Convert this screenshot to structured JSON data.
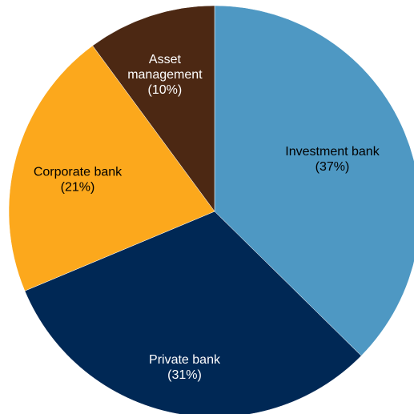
{
  "chart_data": {
    "type": "pie",
    "title": "",
    "start_angle_deg": 0,
    "direction": "clockwise",
    "slices": [
      {
        "name": "Investment bank",
        "value": 37,
        "label_lines": [
          "Investment bank",
          "(37%)"
        ],
        "color": "#4e98c3",
        "text_color": "#000000"
      },
      {
        "name": "Private bank",
        "value": 31,
        "label_lines": [
          "Private bank",
          "(31%)"
        ],
        "color": "#002855",
        "text_color": "#ffffff"
      },
      {
        "name": "Corporate bank",
        "value": 21,
        "label_lines": [
          "Corporate bank",
          "(21%)"
        ],
        "color": "#fca81c",
        "text_color": "#000000"
      },
      {
        "name": "Asset management",
        "value": 10,
        "label_lines": [
          "Asset",
          "management",
          "(10%)"
        ],
        "color": "#4c2813",
        "text_color": "#ffffff"
      }
    ]
  }
}
